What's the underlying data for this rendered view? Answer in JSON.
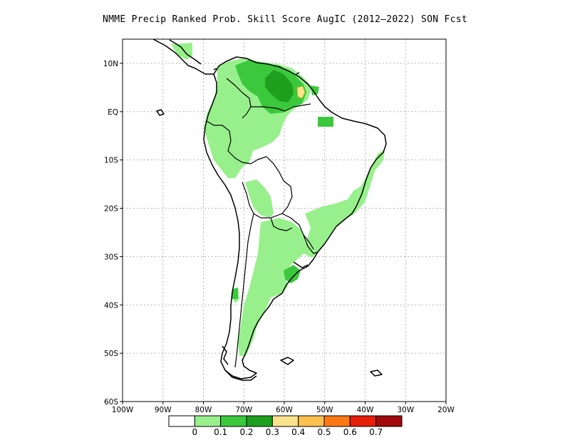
{
  "title": "NMME Precip Ranked Prob. Skill Score AugIC (2012–2022) SON Fcst",
  "map": {
    "lon_range": [
      -100,
      -20
    ],
    "lat_range": [
      -60,
      15
    ],
    "lon_ticks": [
      {
        "value": -100,
        "label": "100W"
      },
      {
        "value": -90,
        "label": "90W"
      },
      {
        "value": -80,
        "label": "80W"
      },
      {
        "value": -70,
        "label": "70W"
      },
      {
        "value": -60,
        "label": "60W"
      },
      {
        "value": -50,
        "label": "50W"
      },
      {
        "value": -40,
        "label": "40W"
      },
      {
        "value": -30,
        "label": "30W"
      },
      {
        "value": -20,
        "label": "20W"
      }
    ],
    "lat_ticks": [
      {
        "value": 10,
        "label": "10N"
      },
      {
        "value": 0,
        "label": "EQ"
      },
      {
        "value": -10,
        "label": "10S"
      },
      {
        "value": -20,
        "label": "20S"
      },
      {
        "value": -30,
        "label": "30S"
      },
      {
        "value": -40,
        "label": "40S"
      },
      {
        "value": -50,
        "label": "50S"
      },
      {
        "value": -60,
        "label": "60S"
      }
    ],
    "grid": "dotted"
  },
  "colorbar": {
    "colors": [
      "#ffffff",
      "#98f08c",
      "#3cc83c",
      "#1ea01e",
      "#fae38c",
      "#fcc050",
      "#fc7814",
      "#e61e0a",
      "#a00a0a"
    ],
    "labels": [
      "0",
      "0.1",
      "0.2",
      "0.3",
      "0.4",
      "0.5",
      "0.6",
      "0.7"
    ]
  },
  "legend_colors": {
    "skill_light": "#98f08c",
    "skill_mid": "#3cc83c",
    "skill_dark": "#1ea01e",
    "skill_yellow": "#fae38c"
  }
}
